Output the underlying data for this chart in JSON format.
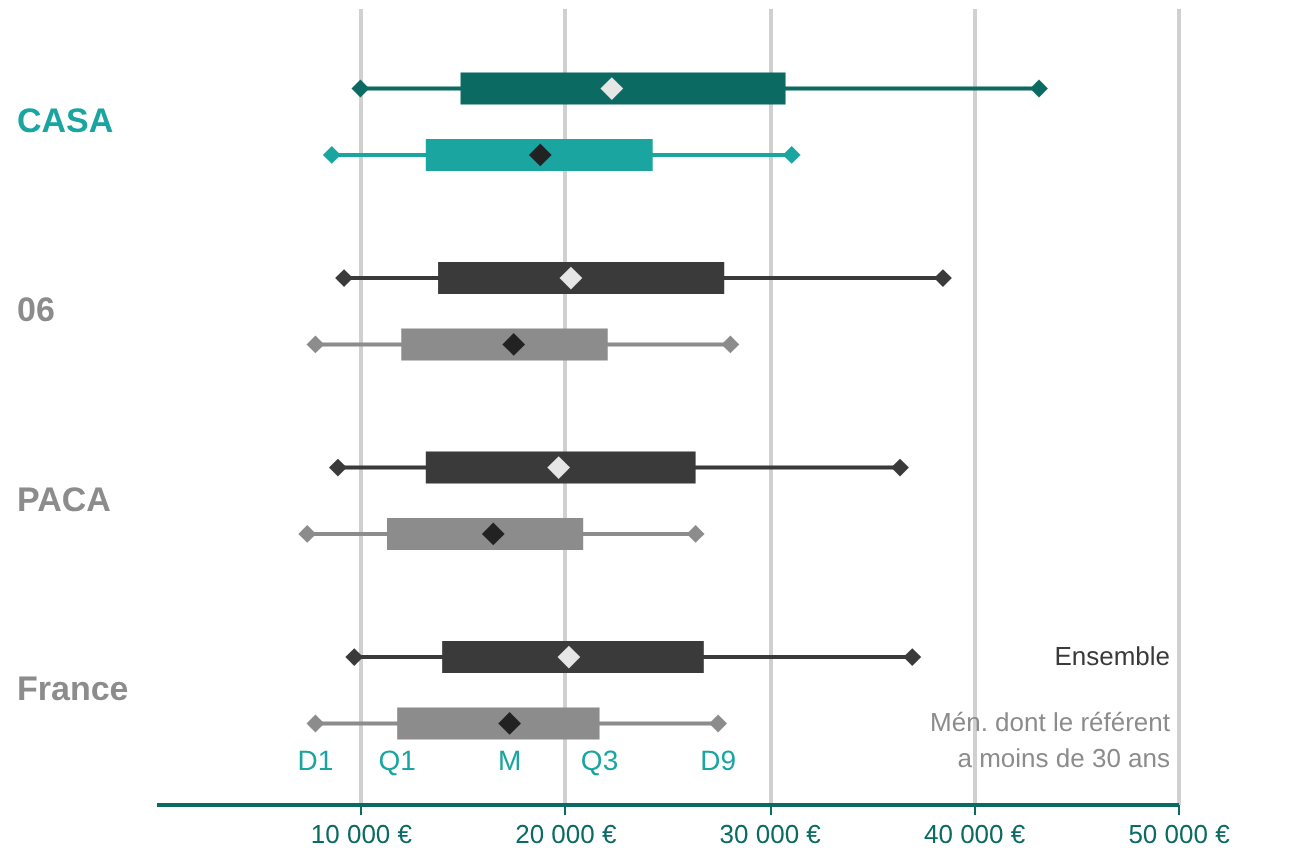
{
  "chart_data": {
    "type": "box",
    "orientation": "horizontal",
    "categories": [
      "CASA",
      "06",
      "PACA",
      "France"
    ],
    "series": [
      {
        "name": "Ensemble",
        "colors": [
          "#0b6b63",
          "#3a3a3a",
          "#3a3a3a",
          "#3a3a3a"
        ],
        "boxes": [
          {
            "low": 10000,
            "q1": 14900,
            "median": 22300,
            "q3": 30800,
            "high": 43200
          },
          {
            "low": 9200,
            "q1": 13800,
            "median": 20300,
            "q3": 27800,
            "high": 38500
          },
          {
            "low": 8900,
            "q1": 13200,
            "median": 19700,
            "q3": 26400,
            "high": 36400
          },
          {
            "low": 9700,
            "q1": 14000,
            "median": 20200,
            "q3": 26800,
            "high": 37000
          }
        ]
      },
      {
        "name": "Mén. dont le référent a moins de 30 ans",
        "colors": [
          "#1aa5a0",
          "#8c8c8c",
          "#8c8c8c",
          "#8c8c8c"
        ],
        "boxes": [
          {
            "low": 8600,
            "q1": 13200,
            "median": 18800,
            "q3": 24300,
            "high": 31100
          },
          {
            "low": 7800,
            "q1": 12000,
            "median": 17500,
            "q3": 22100,
            "high": 28100
          },
          {
            "low": 7400,
            "q1": 11300,
            "median": 16500,
            "q3": 20900,
            "high": 26400
          },
          {
            "low": 7800,
            "q1": 11800,
            "median": 17300,
            "q3": 21700,
            "high": 27500
          }
        ]
      }
    ],
    "xlim": [
      0,
      50000
    ],
    "xticks": [
      {
        "value": 10000,
        "label": "10 000 €"
      },
      {
        "value": 20000,
        "label": "20 000 €"
      },
      {
        "value": 30000,
        "label": "30 000 €"
      },
      {
        "value": 40000,
        "label": "40 000 €"
      },
      {
        "value": 50000,
        "label": "50 000 €"
      }
    ],
    "grid": "x",
    "marker": "diamond",
    "annotations": [
      "D1",
      "Q1",
      "M",
      "Q3",
      "D9"
    ]
  }
}
